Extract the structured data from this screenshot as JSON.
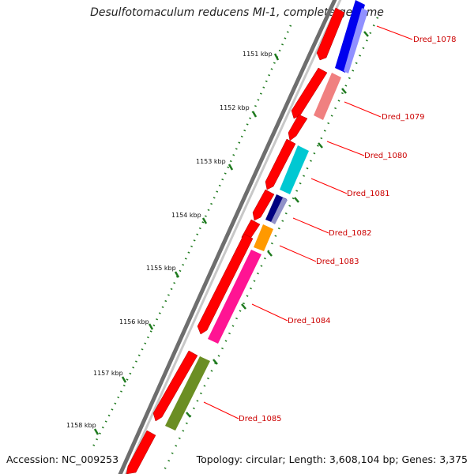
{
  "title": "Desulfotomaculum reducens MI-1, complete genome",
  "accession": "Accession: NC_009253",
  "topology": "Topology: circular; Length: 3,608,104 bp; Genes: 3,375",
  "colors": {
    "backbone": "#7a7a7a",
    "ruler": "#1e7a1e",
    "cds_fwd": "#ff0000",
    "label": "#cc0000"
  },
  "ruler_ticks": [
    {
      "label": "1151 kbp"
    },
    {
      "label": "1152 kbp"
    },
    {
      "label": "1153 kbp"
    },
    {
      "label": "1154 kbp"
    },
    {
      "label": "1155 kbp"
    },
    {
      "label": "1156 kbp"
    },
    {
      "label": "1157 kbp"
    },
    {
      "label": "1158 kbp"
    }
  ],
  "genes": [
    {
      "name": "Dred_1078",
      "color": "#0000ee"
    },
    {
      "name": "Dred_1079",
      "color": "#f08080"
    },
    {
      "name": "Dred_1080",
      "color": "#1e7a1e"
    },
    {
      "name": "Dred_1081",
      "color": "#00c8d2"
    },
    {
      "name": "Dred_1082",
      "color": "#000080"
    },
    {
      "name": "Dred_1083",
      "color": "#ff9900"
    },
    {
      "name": "Dred_1084",
      "color": "#ff1493"
    },
    {
      "name": "Dred_1085",
      "color": "#6b8e23"
    }
  ]
}
